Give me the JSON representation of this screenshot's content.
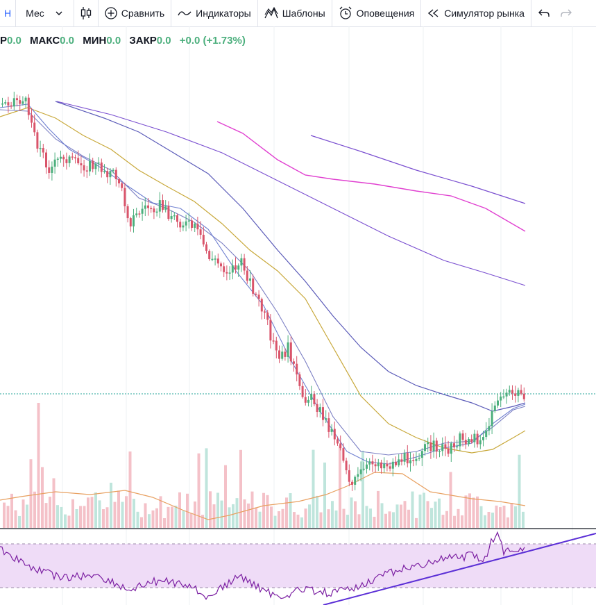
{
  "toolbar": {
    "symbol_letter": "Н",
    "interval": "Мес",
    "compare": "Сравнить",
    "indicators": "Индикаторы",
    "templates": "Шаблоны",
    "alerts": "Оповещения",
    "replay": "Симулятор рынка"
  },
  "legend": {
    "open_label_tail": "Р",
    "open_value": "0.0",
    "high_label": "МАКС",
    "high_value": "0.0",
    "low_label": "МИН",
    "low_value": "0.0",
    "close_label": "ЗАКР",
    "close_value": "0.0",
    "change": "+0.0 (+1.73%)"
  },
  "colors": {
    "up": "#26a69a",
    "up_candle": "#4caf7d",
    "down": "#d9546a",
    "ma_fast": "#7b7fc4",
    "ma_mid": "#5a5ab8",
    "ma_slow": "#c8a83a",
    "ma_long": "#7a4fd0",
    "ma_magenta": "#e040d0",
    "volume_ma": "#e8a060",
    "rsi_line": "#7b1fa2",
    "rsi_band": "#efdcf7",
    "trendline": "#5b2fd6"
  }
}
